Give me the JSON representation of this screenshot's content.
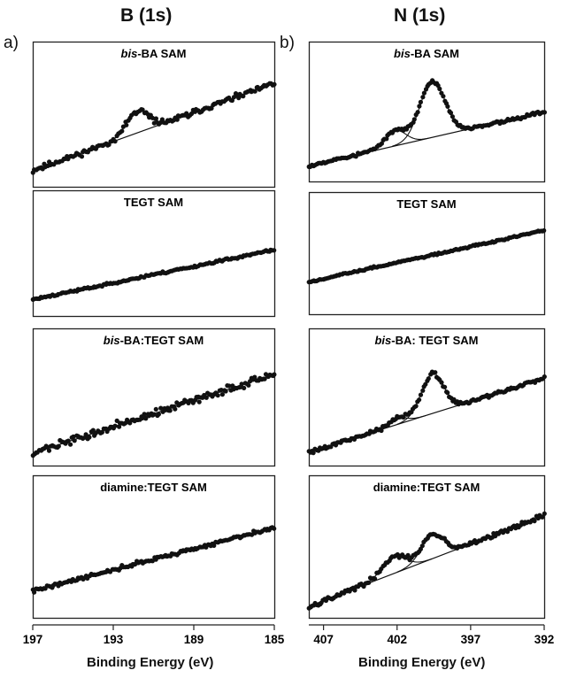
{
  "headers": {
    "left_title": "B (1s)",
    "right_title": "N (1s)",
    "left_letter": "a)",
    "right_letter": "b)",
    "left_xlabel": "Binding Energy (eV)",
    "right_xlabel": "Binding Energy (eV)"
  },
  "chart_data": [
    {
      "type": "scatter",
      "column": "B (1s)",
      "title_italic": "bis",
      "title_rest": "-BA SAM",
      "xlim": [
        197,
        185
      ],
      "x_ticks": [
        197,
        193,
        189,
        185
      ],
      "baseline": [
        [
          197,
          0.08
        ],
        [
          185,
          0.85
        ]
      ],
      "peaks": [
        {
          "center": 191.8,
          "height": 0.19,
          "width": 0.55
        }
      ],
      "noise": 0.035,
      "seed": 11
    },
    {
      "type": "scatter",
      "column": "B (1s)",
      "title_italic": "",
      "title_rest": "TEGT SAM",
      "xlim": [
        197,
        185
      ],
      "x_ticks": [
        197,
        193,
        189,
        185
      ],
      "baseline": [
        [
          197,
          0.1
        ],
        [
          185,
          0.63
        ]
      ],
      "peaks": [],
      "noise": 0.018,
      "seed": 23
    },
    {
      "type": "scatter",
      "column": "B (1s)",
      "title_italic": "bis",
      "title_rest": "-BA:TEGT SAM",
      "xlim": [
        197,
        185
      ],
      "x_ticks": [
        197,
        193,
        189,
        185
      ],
      "baseline": [
        [
          197,
          0.05
        ],
        [
          185,
          0.8
        ]
      ],
      "peaks": [],
      "noise": 0.05,
      "seed": 37
    },
    {
      "type": "scatter",
      "column": "B (1s)",
      "title_italic": "",
      "title_rest": "diamine:TEGT SAM",
      "xlim": [
        197,
        185
      ],
      "x_ticks": [
        197,
        193,
        189,
        185
      ],
      "baseline": [
        [
          197,
          0.18
        ],
        [
          185,
          0.75
        ]
      ],
      "peaks": [],
      "noise": 0.025,
      "seed": 41
    },
    {
      "type": "scatter",
      "column": "N (1s)",
      "title_italic": "bis",
      "title_rest": "-BA SAM",
      "xlim": [
        408,
        392
      ],
      "x_ticks": [
        407,
        402,
        397,
        392
      ],
      "baseline": [
        [
          408,
          0.08
        ],
        [
          392,
          0.58
        ]
      ],
      "peaks": [
        {
          "center": 402.1,
          "height": 0.14,
          "width": 0.7
        },
        {
          "center": 399.6,
          "height": 0.52,
          "width": 0.85
        }
      ],
      "noise": 0.022,
      "seed": 53
    },
    {
      "type": "scatter",
      "column": "N (1s)",
      "title_italic": "",
      "title_rest": "TEGT SAM",
      "xlim": [
        408,
        392
      ],
      "x_ticks": [
        407,
        402,
        397,
        392
      ],
      "baseline": [
        [
          408,
          0.28
        ],
        [
          392,
          0.85
        ]
      ],
      "peaks": [],
      "noise": 0.015,
      "seed": 67
    },
    {
      "type": "scatter",
      "column": "N (1s)",
      "title_italic": "bis",
      "title_rest": "-BA: TEGT SAM",
      "xlim": [
        408,
        392
      ],
      "x_ticks": [
        407,
        402,
        397,
        392
      ],
      "baseline": [
        [
          408,
          0.06
        ],
        [
          392,
          0.76
        ]
      ],
      "peaks": [
        {
          "center": 402.0,
          "height": 0.06,
          "width": 0.6
        },
        {
          "center": 399.6,
          "height": 0.38,
          "width": 0.75
        }
      ],
      "noise": 0.028,
      "seed": 79
    },
    {
      "type": "scatter",
      "column": "N (1s)",
      "title_italic": "",
      "title_rest": "diamine:TEGT SAM",
      "xlim": [
        408,
        392
      ],
      "x_ticks": [
        407,
        402,
        397,
        392
      ],
      "baseline": [
        [
          408,
          0.04
        ],
        [
          392,
          0.86
        ]
      ],
      "peaks": [
        {
          "center": 402.2,
          "height": 0.15,
          "width": 0.8
        },
        {
          "center": 399.6,
          "height": 0.22,
          "width": 0.75
        }
      ],
      "noise": 0.03,
      "seed": 97
    }
  ]
}
